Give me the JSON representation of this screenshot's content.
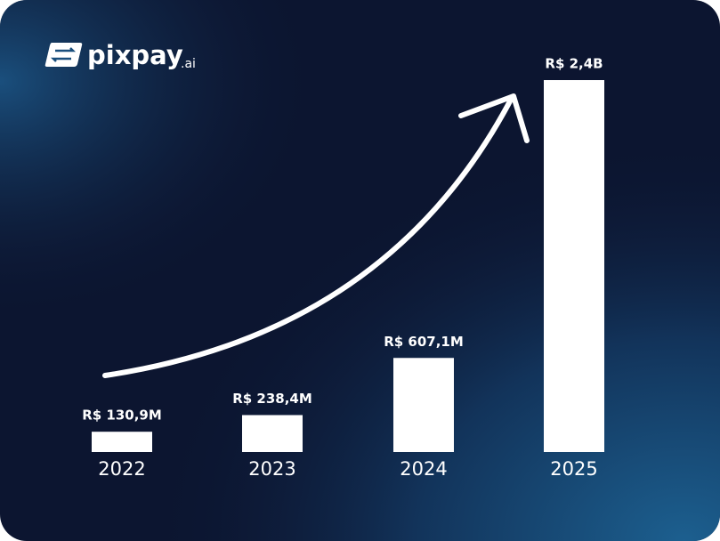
{
  "logo": {
    "name": "pixpay",
    "suffix": ".ai"
  },
  "chart_data": {
    "type": "bar",
    "categories": [
      "2022",
      "2023",
      "2024",
      "2025"
    ],
    "values": [
      130900000,
      238400000,
      607100000,
      2400000000
    ],
    "value_labels": [
      "R$ 130,9M",
      "R$ 238,4M",
      "R$ 607,1M",
      "R$ 2,4B"
    ],
    "color": "#ffffff"
  }
}
